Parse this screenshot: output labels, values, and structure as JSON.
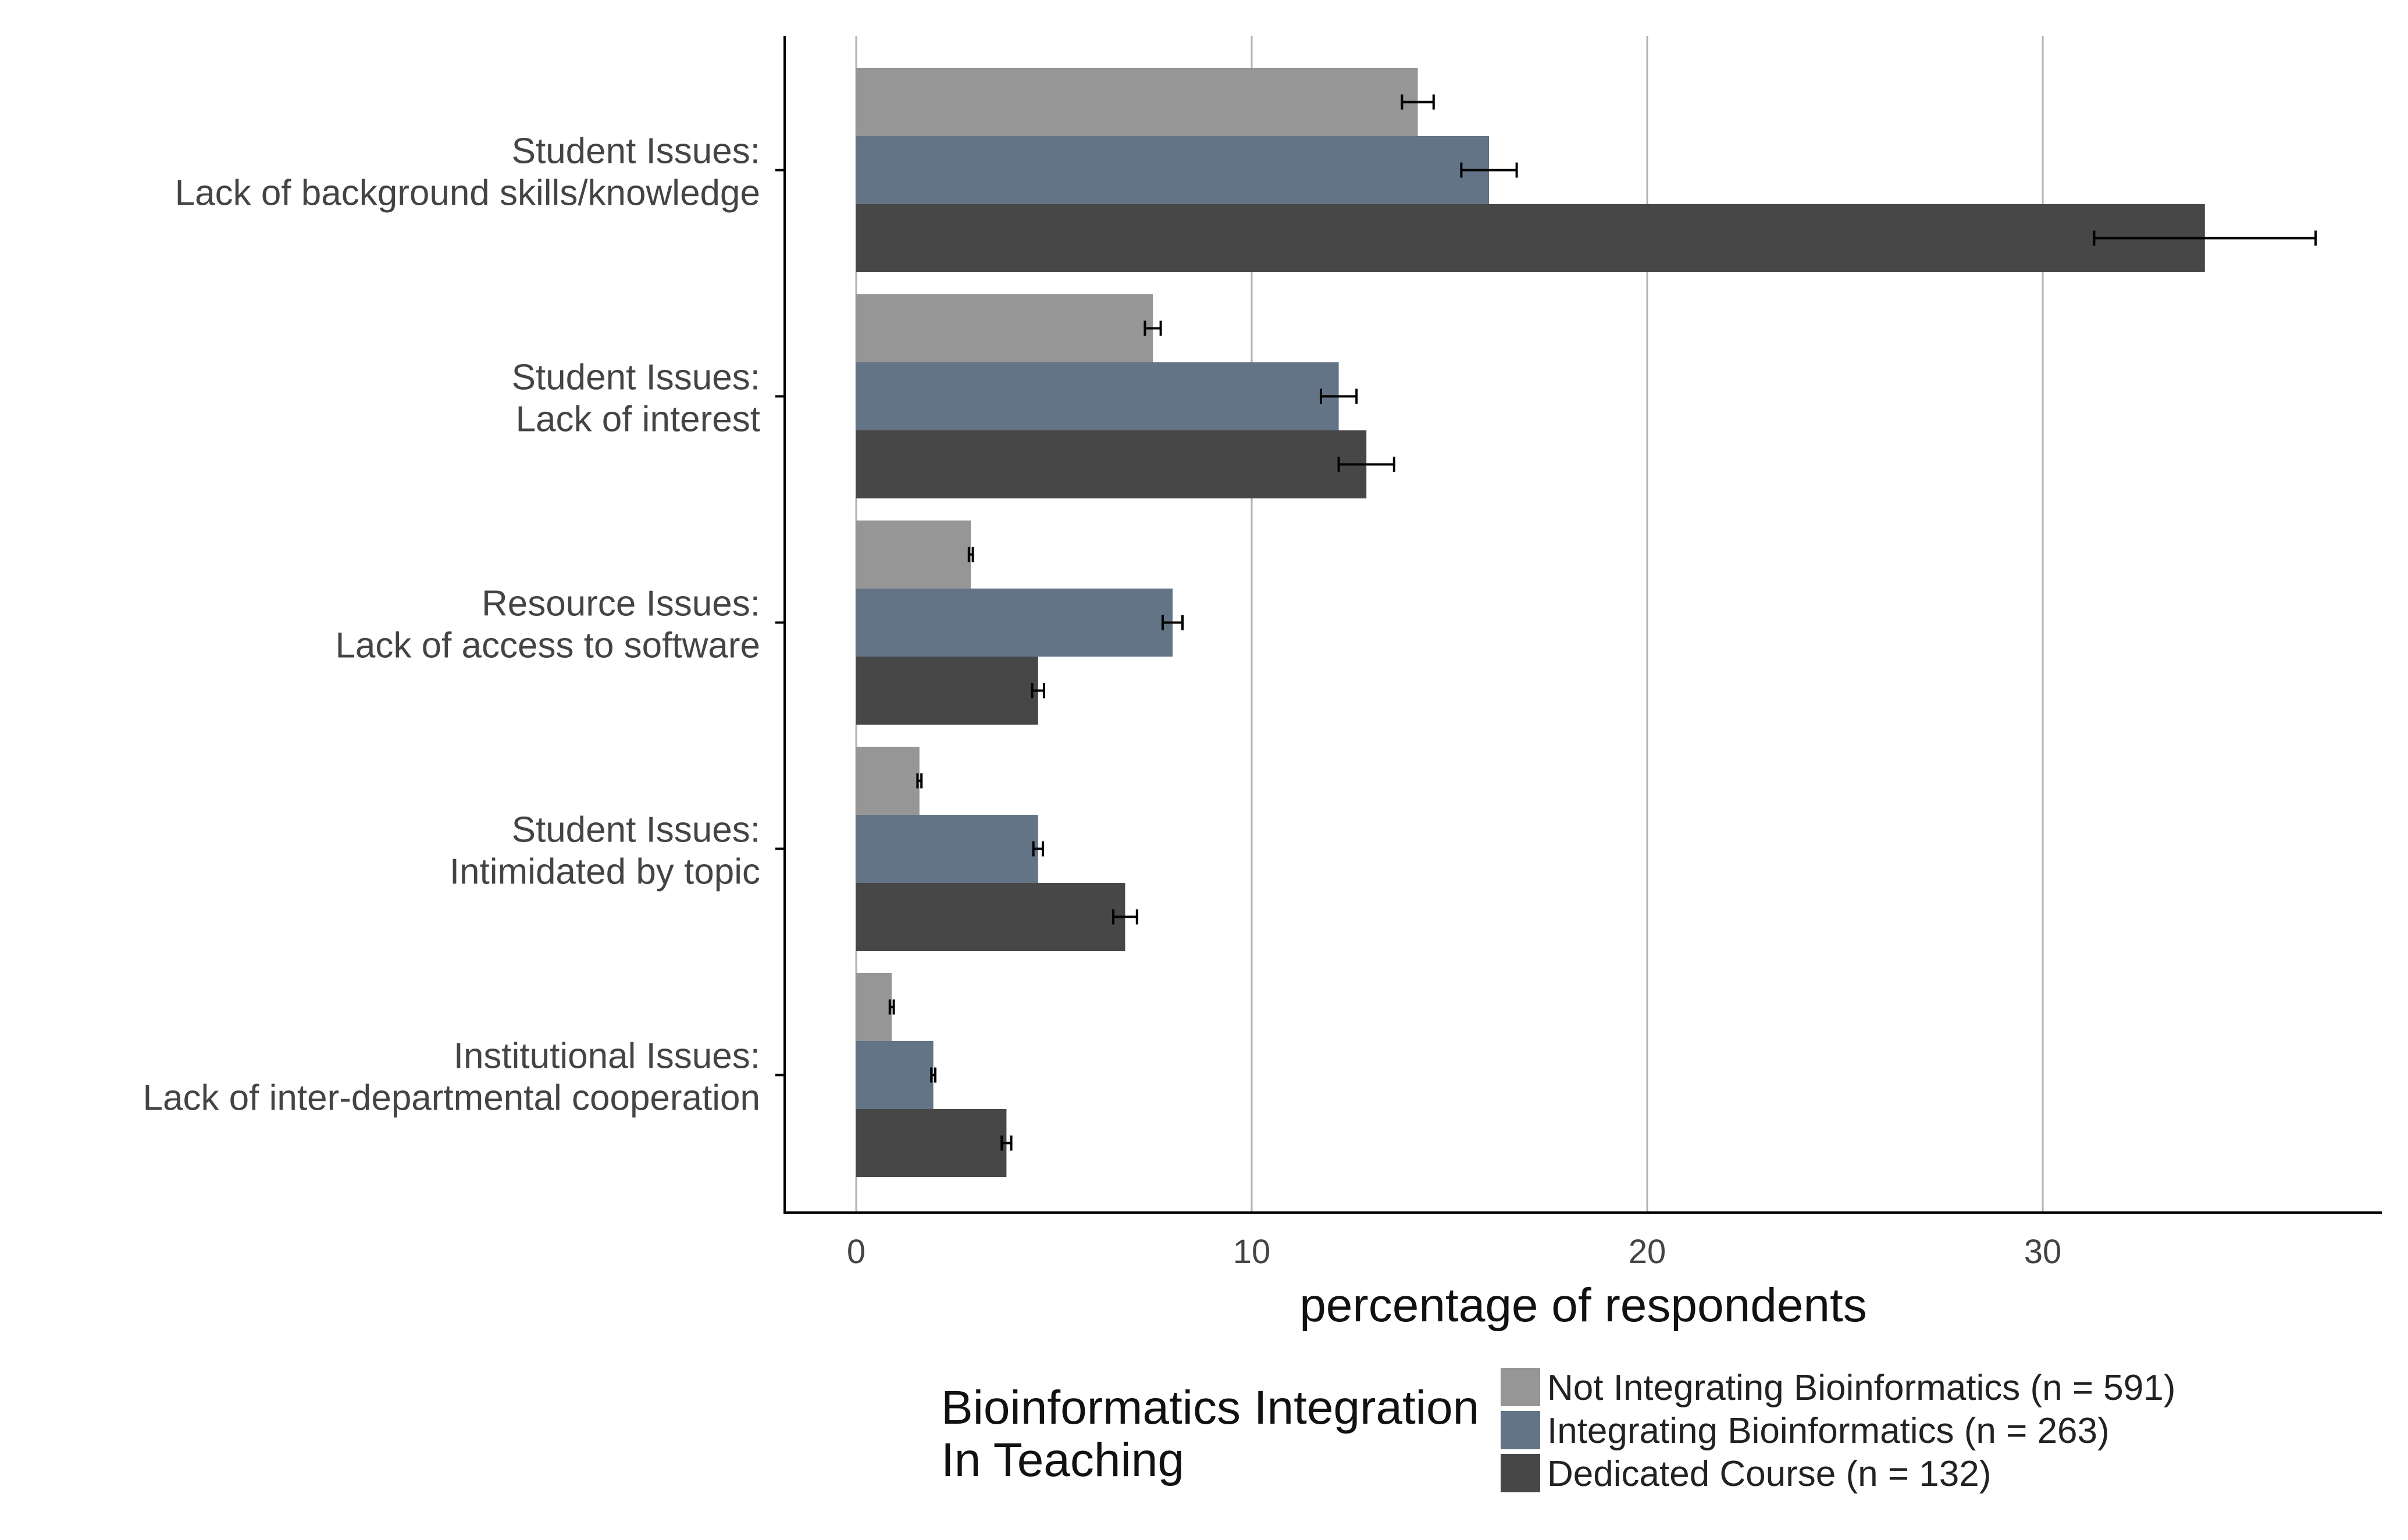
{
  "chart_data": {
    "type": "bar",
    "orientation": "horizontal",
    "xlabel": "percentage of respondents",
    "ylabel": "",
    "xlim": [
      -1.8,
      38.6
    ],
    "xticks": [
      0,
      10,
      20,
      30
    ],
    "grid": "vertical major gridlines",
    "categories": [
      [
        "Student Issues:",
        "Lack of background skills/knowledge"
      ],
      [
        "Student Issues:",
        "Lack of interest"
      ],
      [
        "Resource Issues:",
        "Lack of access to software"
      ],
      [
        "Student Issues:",
        "Intimidated by topic"
      ],
      [
        "Institutional Issues:",
        "Lack of inter-departmental cooperation"
      ]
    ],
    "series": [
      {
        "name": "Not Integrating Bioinformatics (n = 591)",
        "color": "#969696",
        "values": [
          14.2,
          7.5,
          2.9,
          1.6,
          0.9
        ],
        "err": [
          0.4,
          0.2,
          0.05,
          0.05,
          0.05
        ]
      },
      {
        "name": "Integrating Bioinformatics (n = 263)",
        "color": "#627486",
        "values": [
          16.0,
          12.2,
          8.0,
          4.6,
          1.95
        ],
        "err": [
          0.7,
          0.45,
          0.25,
          0.12,
          0.05
        ]
      },
      {
        "name": "Dedicated Course (n = 132)",
        "color": "#474747",
        "values": [
          34.1,
          12.9,
          4.6,
          6.8,
          3.8
        ],
        "err": [
          2.8,
          0.7,
          0.15,
          0.3,
          0.12
        ]
      }
    ],
    "error_bars": true,
    "legend": {
      "title": [
        "Bioinformatics Integration",
        "In Teaching"
      ],
      "placement": "bottom"
    }
  }
}
